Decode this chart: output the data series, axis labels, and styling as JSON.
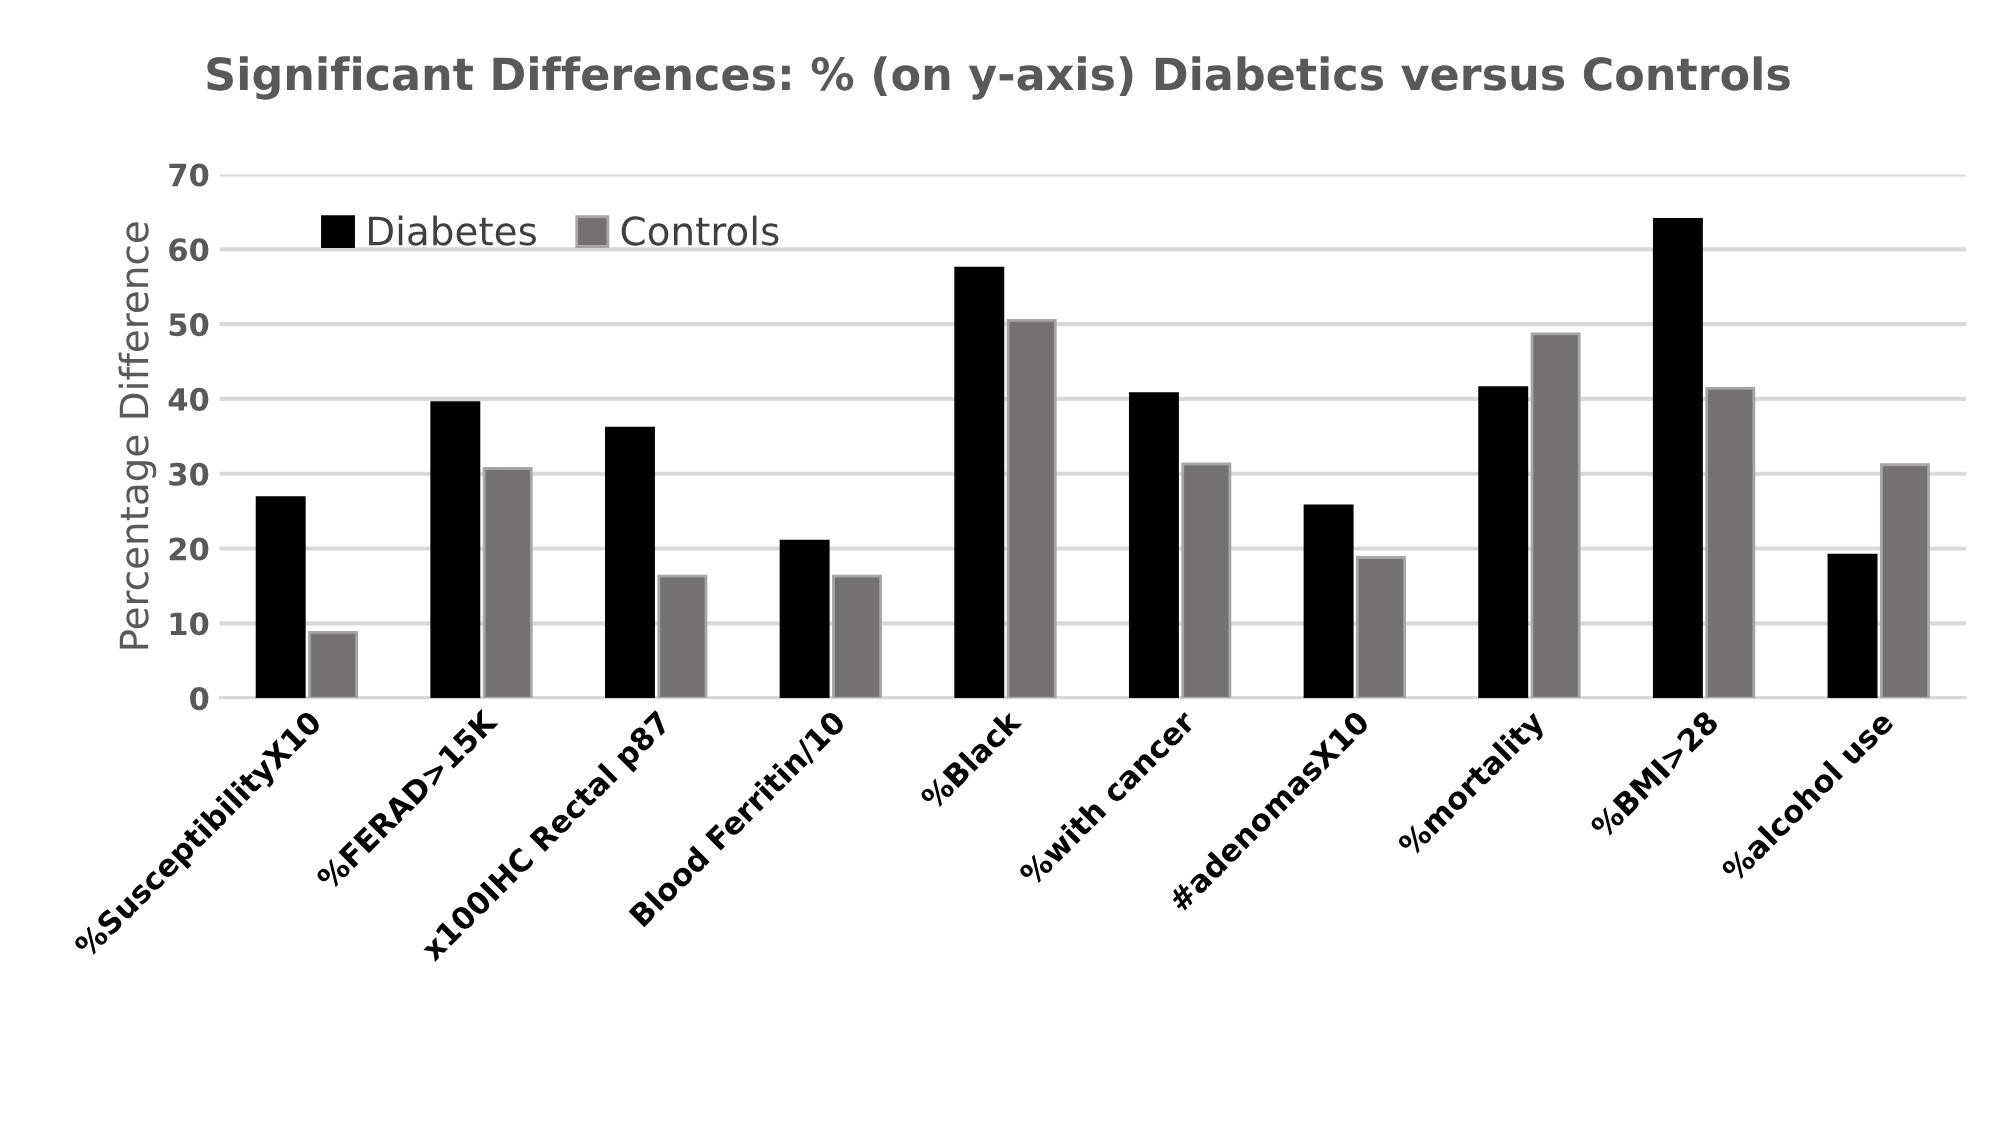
{
  "chart_data": {
    "type": "bar",
    "title": "Significant Differences: % (on y-axis) Diabetics versus Controls",
    "ylabel": "Percentage Difference",
    "categories": [
      "%SusceptibilityX10",
      "%FERAD>15K",
      "x100IHC Rectal p87",
      "Blood Ferritin/10",
      "%Black",
      "%with cancer",
      "#adenomasX10",
      "%mortality",
      "%BMI>28",
      "%alcohol use"
    ],
    "series": [
      {
        "name": "Diabetes",
        "color": "#000000",
        "values": [
          26.8,
          39.5,
          36.1,
          21,
          57.5,
          40.7,
          25.7,
          41.5,
          64,
          19.1
        ]
      },
      {
        "name": "Controls",
        "color": "#767171",
        "values": [
          8.8,
          30.7,
          16.3,
          16.3,
          50.5,
          31.3,
          18.8,
          48.7,
          41.4,
          31.2
        ]
      }
    ],
    "ylim": [
      0,
      70
    ],
    "yticks": [
      0,
      10,
      20,
      30,
      40,
      50,
      60,
      70
    ],
    "grid": "y",
    "legend": "top left"
  }
}
